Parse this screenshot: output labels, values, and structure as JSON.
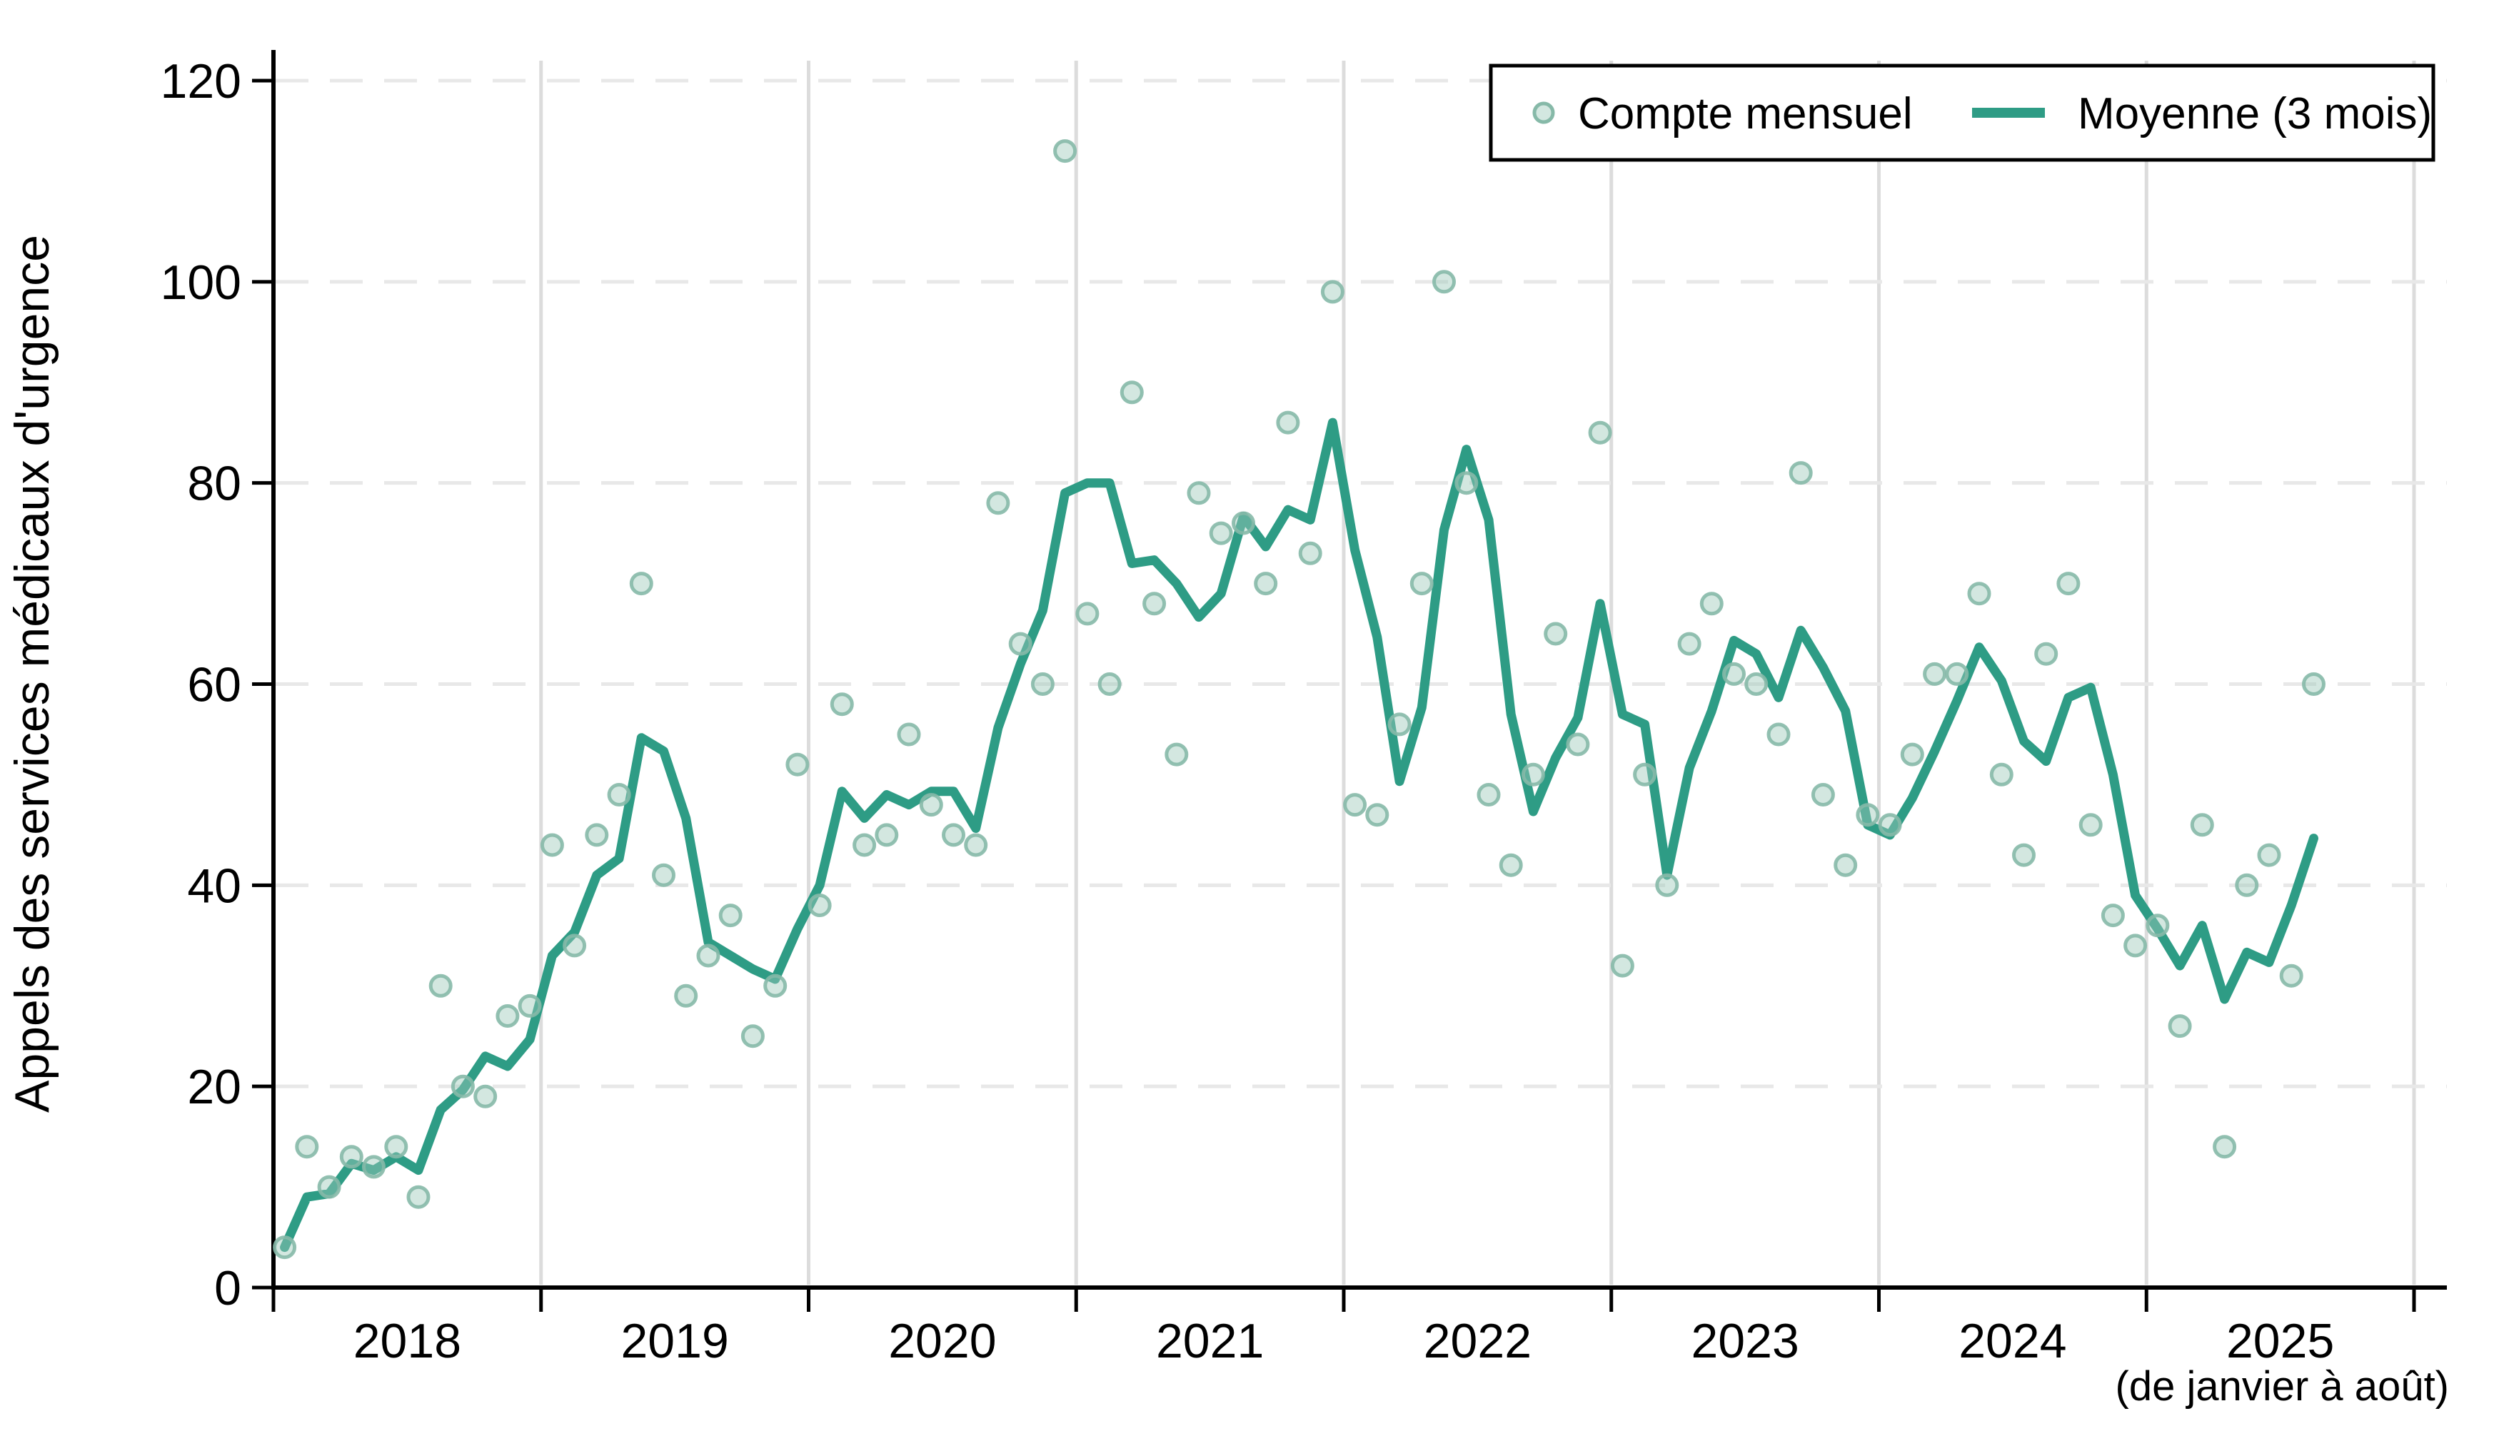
{
  "figure": {
    "y_axis_title": "Appels des services médicaux d'urgence",
    "footnote": "(de janvier à août)",
    "legend": {
      "scatter_label": "Compte mensuel",
      "line_label": "Moyenne (3 mois)"
    }
  },
  "colors": {
    "line": "#2e9c85",
    "dot_fill": "#9ec9bb",
    "dot_stroke": "#86b9a8",
    "grid_dashed": "#e8e8e8",
    "grid_solid": "#dcdcdc",
    "axis": "#000000",
    "legend_border": "#000000",
    "background": "#ffffff"
  },
  "chart_data": {
    "type": "line",
    "title": "",
    "ylabel": "Appels des services médicaux d'urgence",
    "xlabel": "",
    "x_start_month": "2018-01",
    "x_end_month": "2025-08",
    "x_year_ticks": [
      "2018",
      "2019",
      "2020",
      "2021",
      "2022",
      "2023",
      "2024",
      "2025"
    ],
    "x_note": "(de janvier à août)",
    "ylim": [
      0,
      120
    ],
    "yticks": [
      0,
      20,
      40,
      60,
      80,
      100,
      120
    ],
    "grid": {
      "horizontal": "dashed",
      "vertical": "solid-at-year-boundaries"
    },
    "legend_position": "top-right-inside",
    "series": [
      {
        "name": "Compte mensuel",
        "type": "scatter",
        "values": [
          4,
          14,
          10,
          13,
          12,
          14,
          9,
          30,
          20,
          19,
          27,
          28,
          44,
          34,
          45,
          49,
          70,
          41,
          29,
          33,
          37,
          25,
          30,
          52,
          38,
          58,
          44,
          45,
          55,
          48,
          45,
          44,
          78,
          64,
          60,
          113,
          67,
          60,
          89,
          68,
          53,
          79,
          75,
          76,
          70,
          86,
          73,
          99,
          48,
          47,
          56,
          70,
          100,
          80,
          49,
          42,
          51,
          65,
          54,
          85,
          32,
          51,
          40,
          64,
          68,
          61,
          60,
          55,
          81,
          49,
          42,
          47,
          46,
          53,
          61,
          61,
          69,
          51,
          43,
          63,
          70,
          46,
          37,
          34,
          36,
          26,
          46,
          14,
          40,
          43,
          31,
          60
        ]
      },
      {
        "name": "Moyenne (3 mois)",
        "type": "line",
        "derivation": "trailing-3-month-mean-of-scatter"
      }
    ]
  }
}
